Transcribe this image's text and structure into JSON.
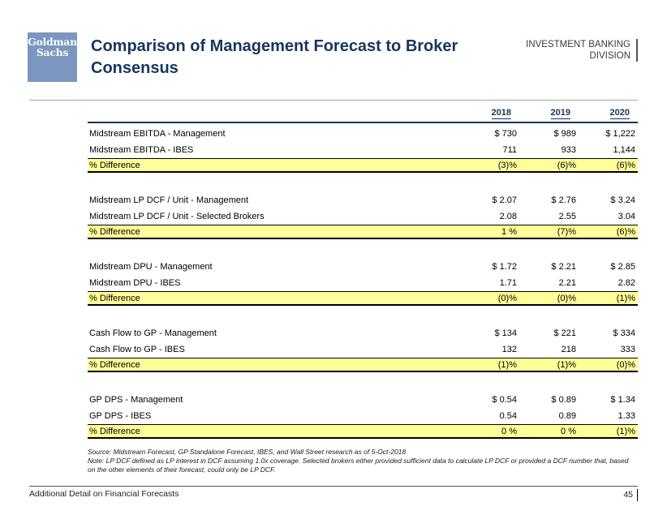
{
  "colors": {
    "accent_navy": "#17365d",
    "logo_blue": "#7b96bf",
    "highlight_yellow": "#ffff99",
    "rule_gray": "#a6a6a6"
  },
  "header": {
    "logo_lines": [
      "Goldman",
      "Sachs"
    ],
    "title_lines": [
      "Comparison of Management Forecast to Broker",
      "Consensus"
    ],
    "division_lines": [
      "INVESTMENT BANKING",
      "DIVISION"
    ]
  },
  "table": {
    "year_headers": [
      "2018",
      "2019",
      "2020"
    ],
    "groups": [
      {
        "rows": [
          {
            "type": "management",
            "label": "Midstream EBITDA - Management",
            "values": [
              "$ 730",
              "$ 989",
              "$ 1,222"
            ]
          },
          {
            "type": "consensus",
            "label": "Midstream EBITDA - IBES",
            "values": [
              "711",
              "933",
              "1,144"
            ]
          },
          {
            "type": "difference",
            "label": "% Difference",
            "values": [
              "(3)%",
              "(6)%",
              "(6)%"
            ]
          }
        ]
      },
      {
        "rows": [
          {
            "type": "management",
            "label": "Midstream LP DCF / Unit - Management",
            "values": [
              "$ 2.07",
              "$ 2.76",
              "$ 3.24"
            ]
          },
          {
            "type": "consensus",
            "label": "Midstream LP DCF / Unit - Selected Brokers",
            "values": [
              "2.08",
              "2.55",
              "3.04"
            ]
          },
          {
            "type": "difference",
            "label": "% Difference",
            "values": [
              "1 %",
              "(7)%",
              "(6)%"
            ]
          }
        ]
      },
      {
        "rows": [
          {
            "type": "management",
            "label": "Midstream DPU - Management",
            "values": [
              "$ 1.72",
              "$ 2.21",
              "$ 2.85"
            ]
          },
          {
            "type": "consensus",
            "label": "Midstream DPU - IBES",
            "values": [
              "1.71",
              "2.21",
              "2.82"
            ]
          },
          {
            "type": "difference",
            "label": "% Difference",
            "values": [
              "(0)%",
              "(0)%",
              "(1)%"
            ]
          }
        ]
      },
      {
        "rows": [
          {
            "type": "management",
            "label": "Cash Flow to GP - Management",
            "values": [
              "$ 134",
              "$ 221",
              "$ 334"
            ]
          },
          {
            "type": "consensus",
            "label": "Cash Flow to GP - IBES",
            "values": [
              "132",
              "218",
              "333"
            ]
          },
          {
            "type": "difference",
            "label": "% Difference",
            "values": [
              "(1)%",
              "(1)%",
              "(0)%"
            ]
          }
        ]
      },
      {
        "rows": [
          {
            "type": "management",
            "label": "GP DPS - Management",
            "values": [
              "$ 0.54",
              "$ 0.89",
              "$ 1.34"
            ]
          },
          {
            "type": "consensus",
            "label": "GP DPS - IBES",
            "values": [
              "0.54",
              "0.89",
              "1.33"
            ]
          },
          {
            "type": "difference",
            "label": "% Difference",
            "values": [
              "0 %",
              "0 %",
              "(1)%"
            ]
          }
        ]
      }
    ]
  },
  "notes": {
    "source": "Source: Midstream Forecast, GP Standalone Forecast, IBES, and Wall Street research as of 5-Oct-2018",
    "note": "Note: LP DCF defined as LP interest in DCF assuming 1.0x coverage. Selected brokers either provided sufficient data to calculate LP DCF or provided a DCF number that, based on the other elements of their forecast, could only be LP DCF."
  },
  "footer": {
    "label": "Additional Detail on Financial Forecasts",
    "page": "45"
  }
}
